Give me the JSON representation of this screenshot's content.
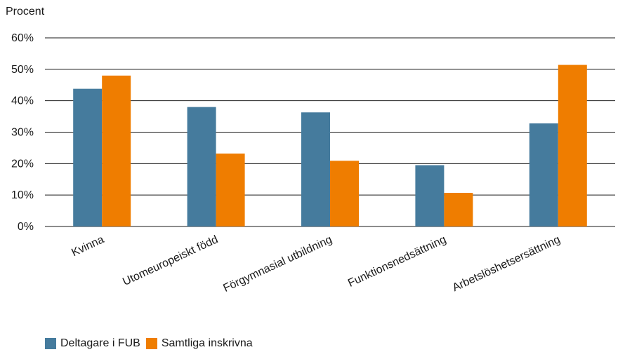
{
  "chart_data": {
    "type": "bar",
    "ylabel": "Procent",
    "ylim": [
      0,
      60
    ],
    "yticks": [
      "0%",
      "10%",
      "20%",
      "30%",
      "40%",
      "50%",
      "60%"
    ],
    "categories": [
      "Kvinna",
      "Utomeuropeiskt född",
      "Förgymnasial utbildning",
      "Funktionsnedsättning",
      "Arbetslöshetsersättning"
    ],
    "series": [
      {
        "name": "Deltagare i FUB",
        "color": "#457b9d",
        "values": [
          43.8,
          38.0,
          36.3,
          19.5,
          32.8
        ]
      },
      {
        "name": "Samtliga inskrivna",
        "color": "#ef7d00",
        "values": [
          48.0,
          23.2,
          20.9,
          10.7,
          51.4
        ]
      }
    ],
    "grid": true,
    "legend_position": "bottom-left"
  }
}
